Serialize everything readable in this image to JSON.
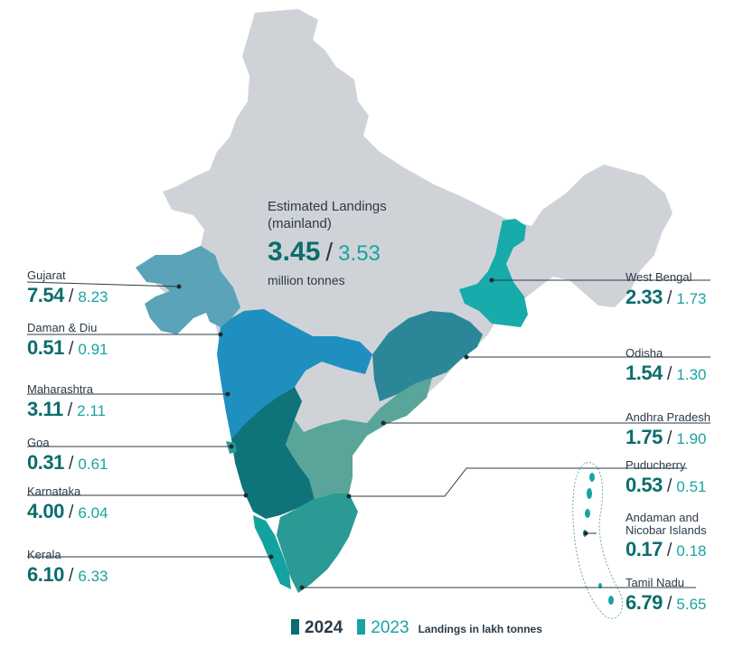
{
  "estimate": {
    "title_line1": "Estimated Landings",
    "title_line2": "(mainland)",
    "value_2024": "3.45",
    "value_2023": "3.53",
    "unit": "million tonnes"
  },
  "states": [
    {
      "name": "Gujarat",
      "v2024": "7.54",
      "v2023": "8.23"
    },
    {
      "name": "Daman & Diu",
      "v2024": "0.51",
      "v2023": "0.91"
    },
    {
      "name": "Maharashtra",
      "v2024": "3.11",
      "v2023": "2.11"
    },
    {
      "name": "Goa",
      "v2024": "0.31",
      "v2023": "0.61"
    },
    {
      "name": "Karnataka",
      "v2024": "4.00",
      "v2023": "6.04"
    },
    {
      "name": "Kerala",
      "v2024": "6.10",
      "v2023": "6.33"
    },
    {
      "name": "West Bengal",
      "v2024": "2.33",
      "v2023": "1.73"
    },
    {
      "name": "Odisha",
      "v2024": "1.54",
      "v2023": "1.30"
    },
    {
      "name": "Andhra Pradesh",
      "v2024": "1.75",
      "v2023": "1.90"
    },
    {
      "name": "Puducherry",
      "v2024": "0.53",
      "v2023": "0.51"
    },
    {
      "name": "Andaman and Nicobar Islands",
      "name_line1": "Andaman and",
      "name_line2": "Nicobar Islands",
      "v2024": "0.17",
      "v2023": "0.18"
    },
    {
      "name": "Tamil Nadu",
      "v2024": "6.79",
      "v2023": "5.65"
    }
  ],
  "legend": {
    "label_2024": "2024",
    "label_2023": "2023",
    "note": "Landings in lakh tonnes"
  },
  "colors": {
    "dark_teal": "#0b6d6d",
    "light_teal": "#17a4a3",
    "land_grey": "#cfd3d8",
    "gujarat": "#5ba3b9",
    "maharashtra": "#1f8fc0",
    "karnataka": "#0f7479",
    "kerala": "#12a3a0",
    "tamil_nadu": "#2a9a94",
    "andhra": "#59a59a",
    "odisha": "#2b8797",
    "west_bengal": "#17abab"
  },
  "icons": {
    "legend_2024": "square-swatch-dark",
    "legend_2023": "square-swatch-light"
  }
}
